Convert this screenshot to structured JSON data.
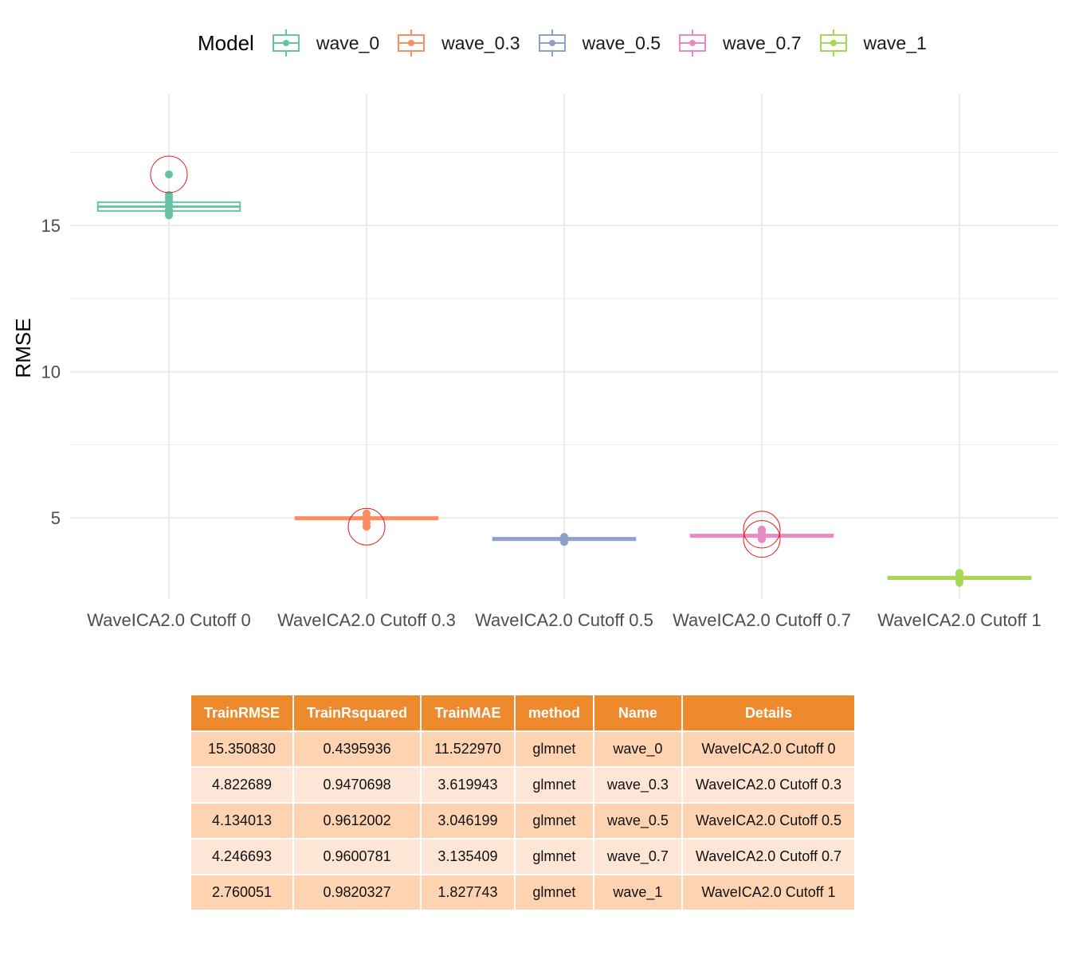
{
  "chart_data": {
    "type": "boxplot",
    "title": "",
    "xlabel": "",
    "ylabel": "RMSE",
    "ylim": [
      2.5,
      19.5
    ],
    "y_ticks": [
      5,
      10,
      15
    ],
    "grid": true,
    "legend_title": "Model",
    "legend_position": "top",
    "categories": [
      "WaveICA2.0 Cutoff 0",
      "WaveICA2.0 Cutoff 0.3",
      "WaveICA2.0 Cutoff 0.5",
      "WaveICA2.0 Cutoff 0.7",
      "WaveICA2.0 Cutoff 1"
    ],
    "series": [
      {
        "name": "wave_0",
        "color": "#66c2a5",
        "q1": 15.5,
        "median": 15.65,
        "q3": 15.8,
        "whisker_low": 15.3,
        "whisker_high": 16.1,
        "points": [
          15.35,
          15.45,
          15.55,
          15.7,
          15.85,
          15.95,
          16.05
        ],
        "outliers": [
          16.75
        ]
      },
      {
        "name": "wave_0.3",
        "color": "#fc8d62",
        "q1": 4.96,
        "median": 5.0,
        "q3": 5.03,
        "whisker_low": 4.7,
        "whisker_high": 5.2,
        "points": [
          4.72,
          4.82,
          4.95,
          5.05,
          5.15
        ],
        "outliers": [
          4.7
        ]
      },
      {
        "name": "wave_0.5",
        "color": "#8da0cb",
        "q1": 4.27,
        "median": 4.3,
        "q3": 4.32,
        "whisker_low": 4.15,
        "whisker_high": 4.4,
        "points": [
          4.18,
          4.25,
          4.35
        ],
        "outliers": []
      },
      {
        "name": "wave_0.7",
        "color": "#e78ac3",
        "q1": 4.38,
        "median": 4.41,
        "q3": 4.43,
        "whisker_low": 4.25,
        "whisker_high": 4.6,
        "points": [
          4.28,
          4.38,
          4.5,
          4.58
        ],
        "outliers": [
          4.6,
          4.28
        ]
      },
      {
        "name": "wave_1",
        "color": "#a6d854",
        "q1": 2.93,
        "median": 2.96,
        "q3": 2.99,
        "whisker_low": 2.75,
        "whisker_high": 3.15,
        "points": [
          2.78,
          2.88,
          3.05,
          3.12
        ],
        "outliers": []
      }
    ]
  },
  "table": {
    "columns": [
      "TrainRMSE",
      "TrainRsquared",
      "TrainMAE",
      "method",
      "Name",
      "Details"
    ],
    "rows": [
      [
        "15.350830",
        "0.4395936",
        "11.522970",
        "glmnet",
        "wave_0",
        "WaveICA2.0 Cutoff 0"
      ],
      [
        "4.822689",
        "0.9470698",
        "3.619943",
        "glmnet",
        "wave_0.3",
        "WaveICA2.0 Cutoff 0.3"
      ],
      [
        "4.134013",
        "0.9612002",
        "3.046199",
        "glmnet",
        "wave_0.5",
        "WaveICA2.0 Cutoff 0.5"
      ],
      [
        "4.246693",
        "0.9600781",
        "3.135409",
        "glmnet",
        "wave_0.7",
        "WaveICA2.0 Cutoff 0.7"
      ],
      [
        "2.760051",
        "0.9820327",
        "1.827743",
        "glmnet",
        "wave_1",
        "WaveICA2.0 Cutoff 1"
      ]
    ]
  },
  "colors": {
    "grid": "#ebebeb",
    "outlier_ring": "#e31a1c",
    "header_bg": "#ee8a2d",
    "row_odd": "#fdd3b2",
    "row_even": "#fde6d5"
  }
}
